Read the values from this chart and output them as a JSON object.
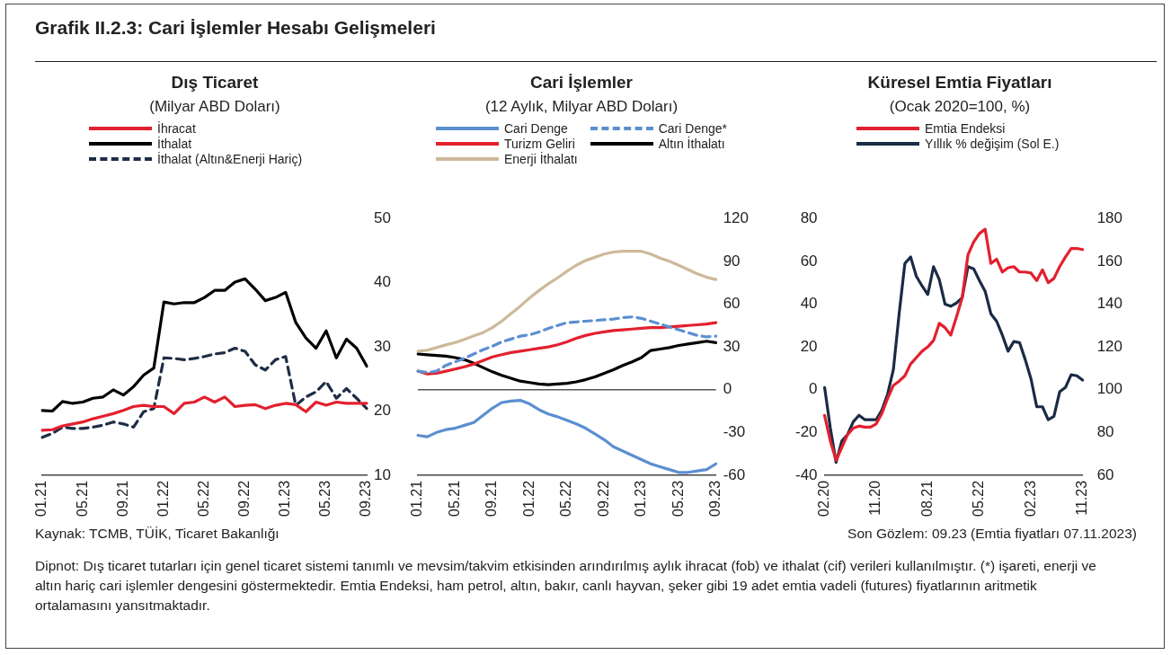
{
  "chart_data": [
    {
      "type": "other",
      "title": "Grafik II.2.3: Cari İşlemler Hesabı Gelişmeleri",
      "annotations": [
        "Kaynak: TCMB, TÜİK, Ticaret Bakanlığı",
        "Son Gözlem: 09.23 (Emtia fiyatları 07.11.2023)",
        "Dipnot: Dış ticaret tutarları için genel ticaret sistemi tanımlı ve mevsim/takvim etkisinden arındırılmış aylık ihracat (fob) ve ithalat (cif) verileri kullanılmıştır. (*) işareti, enerji ve altın hariç cari işlemler dengesini göstermektedir. Emtia Endeksi, ham petrol, altın, bakır, canlı hayvan, şeker gibi 19 adet emtia vadeli (futures) fiyatlarının aritmetik ortalamasını yansıtmaktadır."
      ]
    },
    {
      "type": "line",
      "title": "Dış Ticaret",
      "subtitle": "(Milyar ABD Doları)",
      "legend": "top",
      "marker": "none",
      "ylim": [
        10,
        50
      ],
      "yticks": [
        10,
        20,
        30,
        40,
        50
      ],
      "categories": [
        "01.21",
        null,
        null,
        null,
        "05.21",
        null,
        null,
        null,
        "09.21",
        null,
        null,
        null,
        "01.22",
        null,
        null,
        null,
        "05.22",
        null,
        null,
        null,
        "09.22",
        null,
        null,
        null,
        "01.23",
        null,
        null,
        null,
        "05.23",
        null,
        null,
        null,
        "09.23"
      ],
      "series": [
        {
          "name": "İhracat",
          "color": "#e3202e",
          "values": [
            17.0,
            17.1,
            17.7,
            18.0,
            18.3,
            18.8,
            19.2,
            19.6,
            20.1,
            20.7,
            20.9,
            20.7,
            20.7,
            19.6,
            21.2,
            21.4,
            22.2,
            21.4,
            22.2,
            20.7,
            20.9,
            21.0,
            20.4,
            20.9,
            21.2,
            21.0,
            19.9,
            21.4,
            20.9,
            21.4,
            21.2,
            21.2,
            21.2
          ]
        },
        {
          "name": "İthalat",
          "color": "#000000",
          "values": [
            20.1,
            20.0,
            21.5,
            21.2,
            21.4,
            22.0,
            22.2,
            23.3,
            22.5,
            23.8,
            25.6,
            26.7,
            37.0,
            36.7,
            36.9,
            36.9,
            37.7,
            38.8,
            38.8,
            40.1,
            40.6,
            39.0,
            37.2,
            37.7,
            38.5,
            33.8,
            31.4,
            29.8,
            32.5,
            28.3,
            31.2,
            29.8,
            27.0
          ]
        },
        {
          "name": "İthalat (Altın&Enerji Hariç)",
          "color": "#1f2d45",
          "line_style": "dashed",
          "values": [
            15.9,
            16.5,
            17.5,
            17.3,
            17.3,
            17.5,
            17.8,
            18.3,
            18.0,
            17.5,
            19.9,
            20.4,
            28.3,
            28.2,
            28.0,
            28.2,
            28.5,
            28.9,
            29.1,
            29.8,
            29.3,
            27.2,
            26.4,
            28.0,
            28.5,
            20.9,
            22.2,
            23.0,
            24.6,
            22.0,
            23.5,
            22.0,
            20.4
          ]
        }
      ]
    },
    {
      "type": "line",
      "title": "Cari İşlemler",
      "subtitle": "(12 Aylık, Milyar ABD Doları)",
      "legend": "top",
      "marker": "none",
      "ylim": [
        -60,
        120
      ],
      "yticks": [
        -60,
        -30,
        0,
        30,
        60,
        90,
        120
      ],
      "ref_lines": [
        {
          "axis": "y",
          "value": 0,
          "color": "#555555"
        }
      ],
      "categories": [
        "01.21",
        null,
        null,
        null,
        "05.21",
        null,
        null,
        null,
        "09.21",
        null,
        null,
        null,
        "01.22",
        null,
        null,
        null,
        "05.22",
        null,
        null,
        null,
        "09.22",
        null,
        null,
        null,
        "01.23",
        null,
        null,
        null,
        "05.23",
        null,
        null,
        null,
        "09.23"
      ],
      "series": [
        {
          "name": "Cari Denge",
          "color": "#5b8fd0",
          "values": [
            -32,
            -33,
            -30,
            -28,
            -27,
            -25,
            -23,
            -18,
            -13,
            -9,
            -8,
            -7.5,
            -10,
            -14,
            -17,
            -19,
            -21.5,
            -24,
            -27,
            -31,
            -35,
            -40,
            -43,
            -46,
            -49,
            -52,
            -54,
            -56,
            -58,
            -58,
            -57,
            -56,
            -52
          ]
        },
        {
          "name": "Cari Denge*",
          "color": "#5b8fd0",
          "line_style": "dashed",
          "values": [
            13,
            12,
            13,
            17,
            19.5,
            22,
            25,
            28,
            30.5,
            33.5,
            35.5,
            37.5,
            38.5,
            40.5,
            43,
            45,
            47,
            47.5,
            48,
            48.5,
            49,
            49.5,
            50.5,
            51,
            50,
            48,
            46,
            44,
            42,
            40,
            38,
            37,
            37.5
          ]
        },
        {
          "name": "Turizm Geliri",
          "color": "#e3202e",
          "values": [
            13,
            11,
            11.5,
            13,
            14.5,
            16,
            18,
            20.5,
            23,
            24.5,
            26,
            27,
            28,
            29,
            30,
            31.5,
            33.5,
            36,
            38,
            39.5,
            40.5,
            41.5,
            42,
            42.5,
            43,
            43.5,
            43.5,
            44,
            44.5,
            45,
            45.5,
            46,
            47
          ]
        },
        {
          "name": "Altın İthalatı",
          "color": "#000000",
          "values": [
            25,
            24.5,
            24,
            23.5,
            22.5,
            21,
            18.5,
            15.5,
            12.5,
            10,
            8,
            6,
            5,
            4,
            3.5,
            4,
            4.5,
            5.5,
            7,
            9,
            11.5,
            14,
            17,
            19.5,
            22.5,
            27.5,
            28.5,
            29.5,
            31,
            32,
            33,
            34,
            33
          ]
        },
        {
          "name": "Enerji İthalatı",
          "color": "#cdb99a",
          "values": [
            27,
            27.7,
            29.5,
            31.4,
            33,
            35.3,
            37.7,
            40,
            43.5,
            48,
            53.3,
            58.6,
            64.4,
            69.5,
            74.2,
            78.4,
            83,
            87.2,
            90.5,
            92.8,
            95.1,
            96.5,
            97,
            97,
            97,
            95.1,
            92.3,
            90,
            87.2,
            84.2,
            81.2,
            78.8,
            77.2
          ]
        }
      ]
    },
    {
      "type": "line",
      "title": "Küresel Emtia Fiyatları",
      "subtitle": "(Ocak 2020=100, %)",
      "legend": "top",
      "marker": "none",
      "ylim": [
        -40,
        80
      ],
      "yticks": [
        -40,
        -20,
        0,
        20,
        40,
        60,
        80
      ],
      "y2lim": [
        60,
        180
      ],
      "y2ticks": [
        60,
        80,
        100,
        120,
        140,
        160,
        180
      ],
      "categories": [
        "02.20",
        null,
        null,
        null,
        null,
        null,
        null,
        null,
        null,
        "11.20",
        null,
        null,
        null,
        null,
        null,
        null,
        null,
        null,
        "08.21",
        null,
        null,
        null,
        null,
        null,
        null,
        null,
        null,
        "05.22",
        null,
        null,
        null,
        null,
        null,
        null,
        null,
        null,
        "02.23",
        null,
        null,
        null,
        null,
        null,
        null,
        null,
        null,
        "11.23"
      ],
      "series": [
        {
          "name": "Emtia Endeksi",
          "color": "#e3202e",
          "axis": "y2",
          "values": [
            88,
            76,
            67,
            73,
            79,
            82,
            83,
            82.5,
            82.5,
            84,
            89,
            96,
            102,
            104,
            106.5,
            112,
            115,
            118,
            120,
            123,
            131,
            129,
            125.5,
            134,
            143,
            163,
            169,
            173,
            175,
            159,
            161,
            155,
            157,
            157.5,
            155,
            155,
            154.5,
            151,
            156,
            150,
            152,
            157.5,
            162,
            166,
            166,
            165.5
          ]
        },
        {
          "name": "Yıllık % değişim (Sol E.)",
          "color": "#1a2b45",
          "values": [
            1,
            -18,
            -34,
            -24,
            -21,
            -15,
            -12,
            -14,
            -14,
            -14,
            -9.5,
            -2,
            9.5,
            35.5,
            59,
            62,
            53,
            48.5,
            44.5,
            57.5,
            51.5,
            40,
            39,
            40.5,
            43,
            57.5,
            56.5,
            51,
            46,
            35.5,
            32,
            25.5,
            18,
            22.5,
            22,
            14,
            5,
            -8,
            -8,
            -14,
            -12.5,
            -1,
            1,
            7,
            6.5,
            4.5
          ]
        }
      ]
    }
  ]
}
